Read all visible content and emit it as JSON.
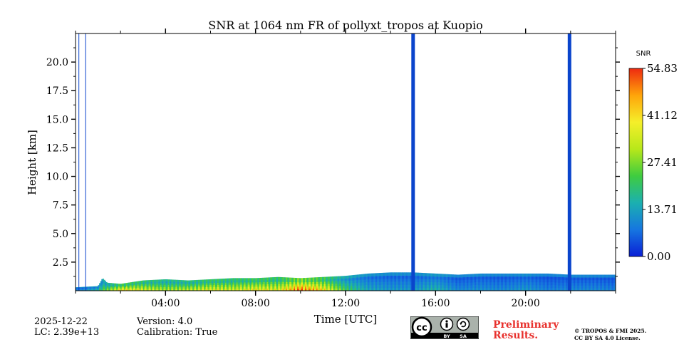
{
  "chart_data": {
    "type": "heatmap",
    "title": "SNR at 1064 nm FR of pollyxt_tropos at Kuopio",
    "xlabel": "Time [UTC]",
    "ylabel": "Height [km]",
    "xlim_hours": [
      0,
      24
    ],
    "ylim_km": [
      0,
      22.5
    ],
    "x_ticks": [
      {
        "hour": 4,
        "label": "04:00"
      },
      {
        "hour": 8,
        "label": "08:00"
      },
      {
        "hour": 12,
        "label": "12:00"
      },
      {
        "hour": 16,
        "label": "16:00"
      },
      {
        "hour": 20,
        "label": "20:00"
      }
    ],
    "y_ticks": [
      {
        "value": 2.5,
        "label": "2.5"
      },
      {
        "value": 5.0,
        "label": "5.0"
      },
      {
        "value": 7.5,
        "label": "7.5"
      },
      {
        "value": 10.0,
        "label": "10.0"
      },
      {
        "value": 12.5,
        "label": "12.5"
      },
      {
        "value": 15.0,
        "label": "15.0"
      },
      {
        "value": 17.5,
        "label": "17.5"
      },
      {
        "value": 20.0,
        "label": "20.0"
      }
    ],
    "colorbar": {
      "label": "SNR",
      "min": 0.0,
      "max": 54.83,
      "ticks": [
        {
          "value": 0.0,
          "label": "0.00"
        },
        {
          "value": 13.71,
          "label": "13.71"
        },
        {
          "value": 27.41,
          "label": "27.41"
        },
        {
          "value": 41.12,
          "label": "41.12"
        },
        {
          "value": 54.83,
          "label": "54.83"
        }
      ],
      "colormap": [
        "#0a1fd6",
        "#1676e0",
        "#1bb0b0",
        "#3fcc3f",
        "#b8e81a",
        "#f5ef2a",
        "#ffa40a",
        "#ee2a10"
      ]
    },
    "missing_data_gaps_hours": [
      0.15,
      0.45,
      15.0,
      21.95
    ],
    "gap_color": "#0a44cc",
    "signal_top_km": [
      [
        0.0,
        0.3
      ],
      [
        1.0,
        0.4
      ],
      [
        1.2,
        1.1
      ],
      [
        1.4,
        0.7
      ],
      [
        2.0,
        0.6
      ],
      [
        3.0,
        0.9
      ],
      [
        4.0,
        1.0
      ],
      [
        5.0,
        0.9
      ],
      [
        6.0,
        1.0
      ],
      [
        7.0,
        1.1
      ],
      [
        8.0,
        1.1
      ],
      [
        9.0,
        1.2
      ],
      [
        10.0,
        1.1
      ],
      [
        11.0,
        1.2
      ],
      [
        12.0,
        1.3
      ],
      [
        13.0,
        1.5
      ],
      [
        14.0,
        1.6
      ],
      [
        15.0,
        1.6
      ],
      [
        16.0,
        1.5
      ],
      [
        17.0,
        1.4
      ],
      [
        18.0,
        1.5
      ],
      [
        19.0,
        1.5
      ],
      [
        20.0,
        1.5
      ],
      [
        21.0,
        1.5
      ],
      [
        22.0,
        1.4
      ],
      [
        23.0,
        1.4
      ],
      [
        24.0,
        1.4
      ]
    ],
    "near_surface_snr": [
      [
        0.0,
        10
      ],
      [
        1.0,
        18
      ],
      [
        2.0,
        40
      ],
      [
        3.0,
        35
      ],
      [
        4.0,
        30
      ],
      [
        5.0,
        32
      ],
      [
        6.0,
        36
      ],
      [
        7.0,
        34
      ],
      [
        8.0,
        38
      ],
      [
        9.0,
        36
      ],
      [
        10.0,
        50
      ],
      [
        11.0,
        40
      ],
      [
        12.0,
        22
      ],
      [
        13.0,
        14
      ],
      [
        14.0,
        12
      ],
      [
        15.0,
        12
      ],
      [
        16.0,
        16
      ],
      [
        17.0,
        10
      ],
      [
        18.0,
        11
      ],
      [
        19.0,
        10
      ],
      [
        20.0,
        12
      ],
      [
        21.0,
        9
      ],
      [
        22.0,
        10
      ],
      [
        23.0,
        10
      ],
      [
        24.0,
        9
      ]
    ]
  },
  "footer": {
    "date": "2025-12-22",
    "lc": "LC: 2.39e+13",
    "version": "Version: 4.0",
    "calibration": "Calibration: True",
    "preliminary_line1": "Preliminary",
    "preliminary_line2": "Results.",
    "copyright_line1": "© TROPOS & FMI 2025.",
    "copyright_line2": "CC BY SA 4.0 License.",
    "license_badge": {
      "cc": "cc",
      "by": "BY",
      "sa": "SA"
    }
  }
}
